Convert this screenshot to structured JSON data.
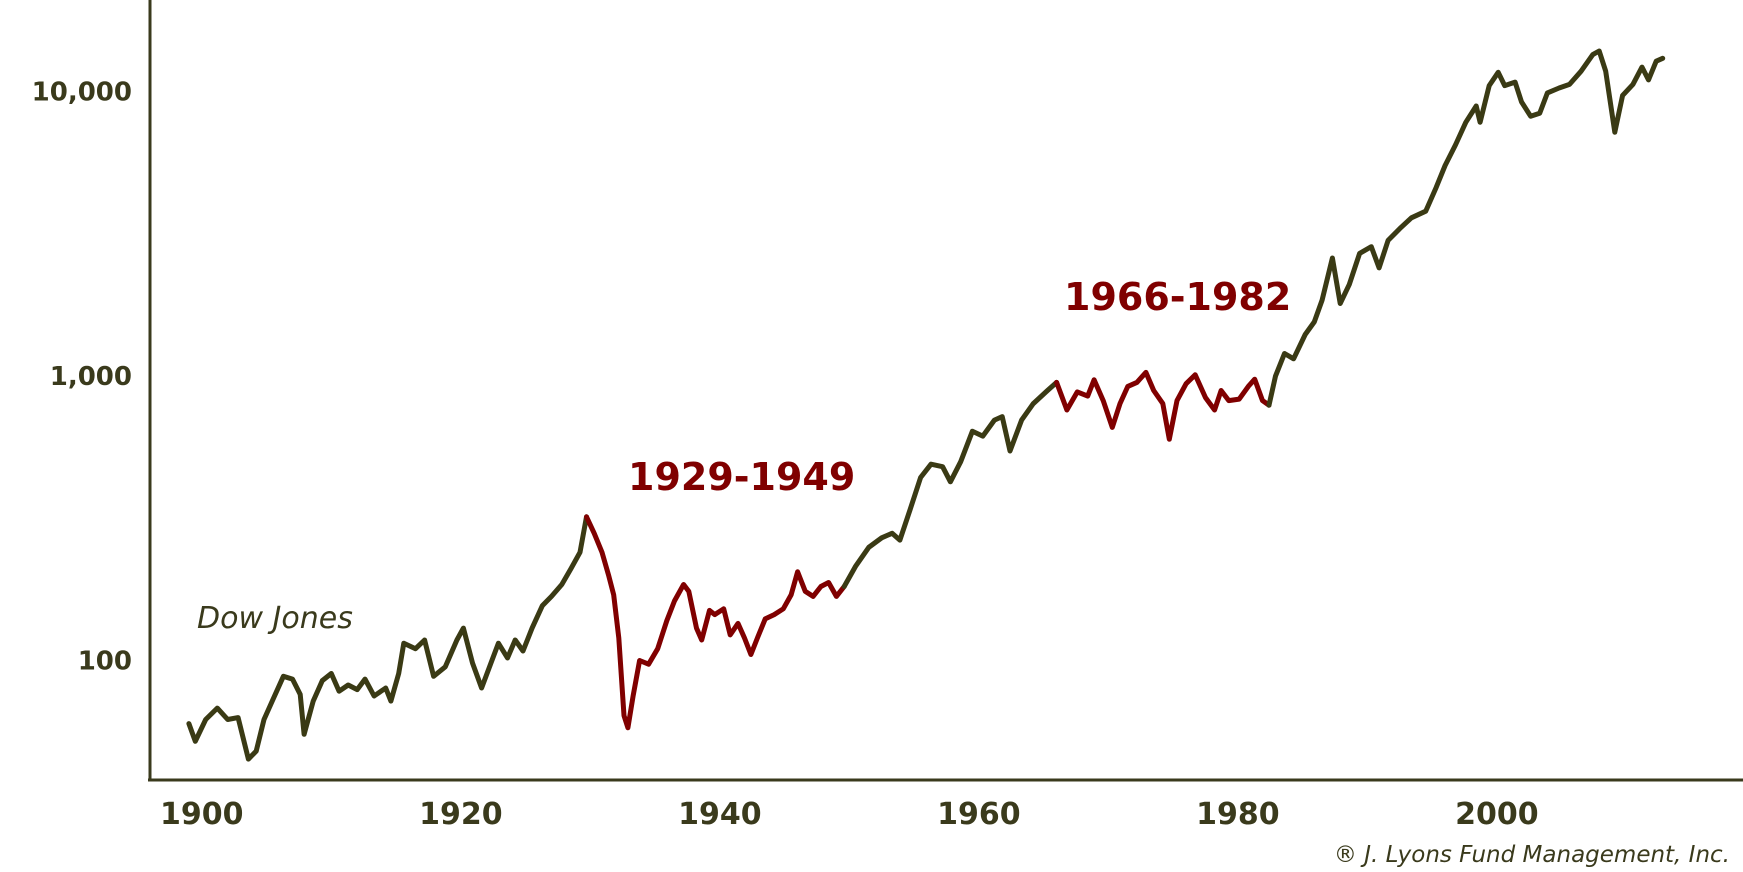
{
  "chart_data": {
    "type": "line",
    "title": "",
    "xlabel": "",
    "ylabel": "",
    "y_scale": "log",
    "xlim": [
      1896,
      2019
    ],
    "ylim": [
      38,
      21000
    ],
    "grid": false,
    "x_ticks": [
      {
        "value": 1900,
        "label": "1900"
      },
      {
        "value": 1920,
        "label": "1920"
      },
      {
        "value": 1940,
        "label": "1940"
      },
      {
        "value": 1960,
        "label": "1960"
      },
      {
        "value": 1980,
        "label": "1980"
      },
      {
        "value": 2000,
        "label": "2000"
      }
    ],
    "y_ticks": [
      {
        "value": 100,
        "label": "100"
      },
      {
        "value": 1000,
        "label": "1,000"
      },
      {
        "value": 10000,
        "label": "10,000"
      }
    ],
    "colors": {
      "series": "#3a3a14",
      "highlight": "#800000",
      "axis": "#3a3a1c"
    },
    "series": [
      {
        "name": "Dow Jones",
        "points": [
          [
            1899.0,
            60
          ],
          [
            1899.5,
            52
          ],
          [
            1900.3,
            62
          ],
          [
            1901.2,
            68
          ],
          [
            1902.0,
            62
          ],
          [
            1902.8,
            63
          ],
          [
            1903.6,
            45
          ],
          [
            1904.2,
            48
          ],
          [
            1904.8,
            62
          ],
          [
            1905.5,
            73
          ],
          [
            1906.3,
            88
          ],
          [
            1907.0,
            86
          ],
          [
            1907.6,
            76
          ],
          [
            1907.9,
            55
          ],
          [
            1908.6,
            72
          ],
          [
            1909.3,
            85
          ],
          [
            1910.0,
            90
          ],
          [
            1910.6,
            78
          ],
          [
            1911.3,
            82
          ],
          [
            1912.0,
            79
          ],
          [
            1912.6,
            86
          ],
          [
            1913.3,
            75
          ],
          [
            1914.2,
            80
          ],
          [
            1914.6,
            72
          ],
          [
            1915.2,
            90
          ],
          [
            1915.6,
            115
          ],
          [
            1916.5,
            110
          ],
          [
            1917.2,
            118
          ],
          [
            1917.9,
            88
          ],
          [
            1918.8,
            95
          ],
          [
            1919.7,
            118
          ],
          [
            1920.2,
            130
          ],
          [
            1920.9,
            98
          ],
          [
            1921.6,
            80
          ],
          [
            1922.4,
            100
          ],
          [
            1922.9,
            115
          ],
          [
            1923.6,
            102
          ],
          [
            1924.2,
            118
          ],
          [
            1924.8,
            108
          ],
          [
            1925.5,
            130
          ],
          [
            1926.3,
            156
          ],
          [
            1927.0,
            168
          ],
          [
            1927.8,
            185
          ],
          [
            1928.5,
            210
          ],
          [
            1929.2,
            240
          ],
          [
            1929.7,
            320
          ]
        ]
      },
      {
        "name": "1929-1949",
        "highlight": true,
        "points": [
          [
            1929.7,
            320
          ],
          [
            1930.3,
            280
          ],
          [
            1930.9,
            240
          ],
          [
            1931.4,
            200
          ],
          [
            1931.8,
            170
          ],
          [
            1932.2,
            120
          ],
          [
            1932.6,
            64
          ],
          [
            1932.9,
            58
          ],
          [
            1933.3,
            75
          ],
          [
            1933.8,
            100
          ],
          [
            1934.5,
            97
          ],
          [
            1935.2,
            110
          ],
          [
            1935.9,
            138
          ],
          [
            1936.5,
            162
          ],
          [
            1937.2,
            185
          ],
          [
            1937.6,
            175
          ],
          [
            1938.2,
            130
          ],
          [
            1938.6,
            118
          ],
          [
            1939.2,
            150
          ],
          [
            1939.6,
            145
          ],
          [
            1940.3,
            152
          ],
          [
            1940.8,
            123
          ],
          [
            1941.4,
            135
          ],
          [
            1941.9,
            120
          ],
          [
            1942.4,
            105
          ],
          [
            1942.9,
            120
          ],
          [
            1943.5,
            140
          ],
          [
            1944.2,
            145
          ],
          [
            1944.9,
            152
          ],
          [
            1945.5,
            170
          ],
          [
            1946.0,
            205
          ],
          [
            1946.6,
            175
          ],
          [
            1947.2,
            168
          ],
          [
            1947.8,
            182
          ],
          [
            1948.4,
            188
          ],
          [
            1949.0,
            168
          ],
          [
            1949.6,
            182
          ]
        ]
      },
      {
        "name": "",
        "points": [
          [
            1949.6,
            182
          ],
          [
            1950.5,
            215
          ],
          [
            1951.5,
            250
          ],
          [
            1952.5,
            270
          ],
          [
            1953.3,
            280
          ],
          [
            1953.9,
            265
          ],
          [
            1954.7,
            340
          ],
          [
            1955.5,
            440
          ],
          [
            1956.3,
            490
          ],
          [
            1957.2,
            480
          ],
          [
            1957.8,
            425
          ],
          [
            1958.6,
            500
          ],
          [
            1959.5,
            640
          ],
          [
            1960.3,
            615
          ],
          [
            1961.2,
            700
          ],
          [
            1961.8,
            720
          ],
          [
            1962.4,
            545
          ],
          [
            1963.3,
            700
          ],
          [
            1964.2,
            800
          ],
          [
            1965.3,
            890
          ],
          [
            1966.0,
            950
          ]
        ]
      },
      {
        "name": "1966-1982",
        "highlight": true,
        "points": [
          [
            1966.0,
            950
          ],
          [
            1966.8,
            760
          ],
          [
            1967.6,
            880
          ],
          [
            1968.4,
            850
          ],
          [
            1968.9,
            970
          ],
          [
            1969.6,
            820
          ],
          [
            1970.3,
            660
          ],
          [
            1970.9,
            800
          ],
          [
            1971.5,
            920
          ],
          [
            1972.2,
            950
          ],
          [
            1972.9,
            1030
          ],
          [
            1973.5,
            890
          ],
          [
            1974.2,
            800
          ],
          [
            1974.7,
            600
          ],
          [
            1975.3,
            820
          ],
          [
            1976.0,
            940
          ],
          [
            1976.7,
            1010
          ],
          [
            1977.5,
            840
          ],
          [
            1978.2,
            760
          ],
          [
            1978.7,
            890
          ],
          [
            1979.3,
            820
          ],
          [
            1980.1,
            830
          ],
          [
            1980.8,
            920
          ],
          [
            1981.3,
            975
          ],
          [
            1981.9,
            820
          ],
          [
            1982.4,
            790
          ]
        ]
      },
      {
        "name": "",
        "points": [
          [
            1982.4,
            790
          ],
          [
            1982.9,
            1000
          ],
          [
            1983.6,
            1200
          ],
          [
            1984.3,
            1150
          ],
          [
            1985.2,
            1400
          ],
          [
            1985.9,
            1550
          ],
          [
            1986.5,
            1850
          ],
          [
            1987.3,
            2600
          ],
          [
            1987.9,
            1800
          ],
          [
            1988.6,
            2100
          ],
          [
            1989.4,
            2700
          ],
          [
            1990.3,
            2850
          ],
          [
            1990.9,
            2400
          ],
          [
            1991.6,
            3000
          ],
          [
            1992.5,
            3300
          ],
          [
            1993.4,
            3600
          ],
          [
            1994.5,
            3800
          ],
          [
            1995.3,
            4600
          ],
          [
            1996.0,
            5500
          ],
          [
            1996.8,
            6500
          ],
          [
            1997.6,
            7800
          ],
          [
            1998.4,
            8900
          ],
          [
            1998.7,
            7800
          ],
          [
            1999.4,
            10500
          ],
          [
            2000.1,
            11700
          ],
          [
            2000.6,
            10500
          ],
          [
            2001.4,
            10800
          ],
          [
            2001.9,
            9200
          ],
          [
            2002.6,
            8200
          ],
          [
            2003.3,
            8400
          ],
          [
            2003.9,
            9900
          ],
          [
            2004.8,
            10300
          ],
          [
            2005.6,
            10600
          ],
          [
            2006.5,
            11800
          ],
          [
            2007.4,
            13500
          ],
          [
            2007.9,
            13900
          ],
          [
            2008.4,
            11800
          ],
          [
            2009.1,
            7200
          ],
          [
            2009.7,
            9700
          ],
          [
            2010.5,
            10600
          ],
          [
            2011.2,
            12200
          ],
          [
            2011.7,
            11000
          ],
          [
            2012.3,
            12800
          ],
          [
            2012.8,
            13100
          ]
        ]
      }
    ],
    "annotations": [
      {
        "text": "1929-1949",
        "color": "#800000"
      },
      {
        "text": "1966-1982",
        "color": "#800000"
      }
    ],
    "series_label": "Dow Jones",
    "credit": "® J. Lyons Fund Management, Inc."
  }
}
